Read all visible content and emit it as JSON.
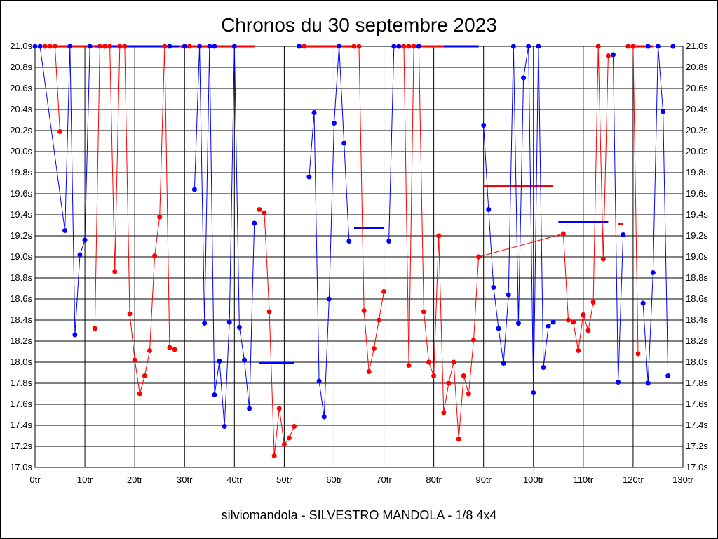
{
  "chart_data": {
    "type": "line",
    "title": "Chronos du 30 septembre 2023",
    "footer": "silviomandola - SILVESTRO MANDOLA - 1/8 4x4",
    "xlabel": "",
    "ylabel": "",
    "xlim": [
      0,
      130
    ],
    "ylim": [
      17.0,
      21.0
    ],
    "grid": true,
    "legend": "none",
    "x_ticks": [
      {
        "value": 0,
        "label": "0tr"
      },
      {
        "value": 10,
        "label": "10tr"
      },
      {
        "value": 20,
        "label": "20tr"
      },
      {
        "value": 30,
        "label": "30tr"
      },
      {
        "value": 40,
        "label": "40tr"
      },
      {
        "value": 50,
        "label": "50tr"
      },
      {
        "value": 60,
        "label": "60tr"
      },
      {
        "value": 70,
        "label": "70tr"
      },
      {
        "value": 80,
        "label": "80tr"
      },
      {
        "value": 90,
        "label": "90tr"
      },
      {
        "value": 100,
        "label": "100tr"
      },
      {
        "value": 110,
        "label": "110tr"
      },
      {
        "value": 120,
        "label": "120tr"
      },
      {
        "value": 130,
        "label": "130tr"
      }
    ],
    "y_ticks": [
      {
        "value": 17.0,
        "label": "17.0s"
      },
      {
        "value": 17.2,
        "label": "17.2s"
      },
      {
        "value": 17.4,
        "label": "17.4s"
      },
      {
        "value": 17.6,
        "label": "17.6s"
      },
      {
        "value": 17.8,
        "label": "17.8s"
      },
      {
        "value": 18.0,
        "label": "18.0s"
      },
      {
        "value": 18.2,
        "label": "18.2s"
      },
      {
        "value": 18.4,
        "label": "18.4s"
      },
      {
        "value": 18.6,
        "label": "18.6s"
      },
      {
        "value": 18.8,
        "label": "18.8s"
      },
      {
        "value": 19.0,
        "label": "19.0s"
      },
      {
        "value": 19.2,
        "label": "19.2s"
      },
      {
        "value": 19.4,
        "label": "19.4s"
      },
      {
        "value": 19.6,
        "label": "19.6s"
      },
      {
        "value": 19.8,
        "label": "19.8s"
      },
      {
        "value": 20.0,
        "label": "20.0s"
      },
      {
        "value": 20.2,
        "label": "20.2s"
      },
      {
        "value": 20.4,
        "label": "20.4s"
      },
      {
        "value": 20.6,
        "label": "20.6s"
      },
      {
        "value": 20.8,
        "label": "20.8s"
      },
      {
        "value": 21.0,
        "label": "21.0s"
      }
    ],
    "series": [
      {
        "color": "#0000ff",
        "points": [
          [
            0,
            21.0
          ],
          [
            1,
            21.0
          ],
          [
            6,
            19.25
          ],
          [
            7,
            21.0
          ],
          [
            8,
            18.26
          ],
          [
            9,
            19.02
          ],
          [
            10,
            19.16
          ],
          [
            11,
            21.0
          ],
          [
            32,
            19.64
          ],
          [
            33,
            21.0
          ],
          [
            34,
            18.37
          ],
          [
            35,
            21.0
          ],
          [
            36,
            17.69
          ],
          [
            37,
            18.01
          ],
          [
            38,
            17.39
          ],
          [
            39,
            18.38
          ],
          [
            40,
            21.0
          ],
          [
            41,
            18.33
          ],
          [
            42,
            18.02
          ],
          [
            43,
            17.56
          ],
          [
            44,
            19.32
          ],
          [
            55,
            19.76
          ],
          [
            56,
            20.37
          ],
          [
            57,
            17.82
          ],
          [
            58,
            17.48
          ],
          [
            59,
            18.6
          ],
          [
            60,
            20.27
          ],
          [
            61,
            21.0
          ],
          [
            62,
            20.08
          ],
          [
            63,
            19.15
          ],
          [
            71,
            19.15
          ],
          [
            72,
            21.0
          ],
          [
            90,
            20.25
          ],
          [
            91,
            19.45
          ],
          [
            92,
            18.71
          ],
          [
            93,
            18.32
          ],
          [
            94,
            17.99
          ],
          [
            95,
            18.64
          ],
          [
            96,
            21.0
          ],
          [
            97,
            18.37
          ],
          [
            98,
            20.7
          ],
          [
            99,
            21.0
          ],
          [
            100,
            17.71
          ],
          [
            101,
            21.0
          ],
          [
            102,
            17.95
          ],
          [
            103,
            18.34
          ],
          [
            104,
            18.38
          ],
          [
            116,
            20.92
          ],
          [
            117,
            17.81
          ],
          [
            118,
            19.21
          ],
          [
            122,
            18.56
          ],
          [
            123,
            17.8
          ],
          [
            124,
            18.85
          ],
          [
            125,
            21.0
          ],
          [
            126,
            20.38
          ],
          [
            127,
            17.87
          ],
          [
            128,
            21.0
          ]
        ],
        "segments": [
          [
            0,
            7
          ],
          [
            8,
            20
          ],
          [
            21,
            29
          ],
          [
            30,
            31
          ],
          [
            32,
            46
          ],
          [
            47,
            49
          ],
          [
            50,
            55
          ]
        ]
      },
      {
        "color": "#ff0000",
        "points": [
          [
            3,
            21.0
          ],
          [
            4,
            21.0
          ],
          [
            5,
            20.19
          ],
          [
            12,
            18.32
          ],
          [
            13,
            21.0
          ],
          [
            14,
            21.0
          ],
          [
            15,
            21.0
          ],
          [
            16,
            18.86
          ],
          [
            17,
            21.0
          ],
          [
            18,
            21.0
          ],
          [
            19,
            18.46
          ],
          [
            20,
            18.02
          ],
          [
            21,
            17.7
          ],
          [
            22,
            17.87
          ],
          [
            23,
            18.11
          ],
          [
            24,
            19.01
          ],
          [
            25,
            19.38
          ],
          [
            26,
            21.0
          ],
          [
            27,
            18.14
          ],
          [
            28,
            18.12
          ],
          [
            45,
            19.45
          ],
          [
            46,
            19.42
          ],
          [
            47,
            18.48
          ],
          [
            48,
            17.11
          ],
          [
            49,
            17.56
          ],
          [
            50,
            17.22
          ],
          [
            51,
            17.28
          ],
          [
            52,
            17.39
          ],
          [
            65,
            21.0
          ],
          [
            66,
            18.49
          ],
          [
            67,
            17.91
          ],
          [
            68,
            18.13
          ],
          [
            69,
            18.4
          ],
          [
            70,
            18.67
          ],
          [
            74,
            21.0
          ],
          [
            75,
            17.97
          ],
          [
            76,
            21.0
          ],
          [
            77,
            21.0
          ],
          [
            78,
            18.48
          ],
          [
            79,
            18.0
          ],
          [
            80,
            17.87
          ],
          [
            81,
            19.2
          ],
          [
            82,
            17.52
          ],
          [
            83,
            17.8
          ],
          [
            84,
            18.0
          ],
          [
            85,
            17.27
          ],
          [
            86,
            17.87
          ],
          [
            87,
            17.7
          ],
          [
            88,
            18.21
          ],
          [
            89,
            19.0
          ],
          [
            106,
            19.22
          ],
          [
            107,
            18.4
          ],
          [
            108,
            18.38
          ],
          [
            109,
            18.11
          ],
          [
            110,
            18.45
          ],
          [
            111,
            18.3
          ],
          [
            112,
            18.57
          ],
          [
            113,
            21.0
          ],
          [
            114,
            18.98
          ],
          [
            115,
            20.91
          ],
          [
            120,
            21.0
          ],
          [
            121,
            18.08
          ]
        ],
        "segments": [
          [
            0,
            2
          ],
          [
            3,
            19
          ],
          [
            20,
            27
          ],
          [
            28,
            33
          ],
          [
            34,
            51
          ],
          [
            52,
            59
          ],
          [
            60,
            61
          ]
        ]
      }
    ],
    "flat_segments": [
      {
        "color": "#0000ff",
        "x": [
          8,
          29
        ],
        "y": 21.0
      },
      {
        "color": "#0000ff",
        "x": [
          45,
          52
        ],
        "y": 17.99
      },
      {
        "color": "#0000ff",
        "x": [
          64,
          70
        ],
        "y": 19.27
      },
      {
        "color": "#0000ff",
        "x": [
          77,
          89
        ],
        "y": 21.0
      },
      {
        "color": "#0000ff",
        "x": [
          105,
          115
        ],
        "y": 19.33
      },
      {
        "color": "#ff0000",
        "x": [
          2,
          12
        ],
        "y": 21.0
      },
      {
        "color": "#ff0000",
        "x": [
          29,
          44
        ],
        "y": 21.0
      },
      {
        "color": "#ff0000",
        "x": [
          54,
          64
        ],
        "y": 21.0
      },
      {
        "color": "#ff0000",
        "x": [
          72,
          82
        ],
        "y": 21.0
      },
      {
        "color": "#ff0000",
        "x": [
          90,
          104
        ],
        "y": 19.67
      },
      {
        "color": "#ff0000",
        "x": [
          117,
          118
        ],
        "y": 19.31
      },
      {
        "color": "#ff0000",
        "x": [
          119,
          124
        ],
        "y": 21.0
      }
    ],
    "flat_markers": [
      {
        "color": "#0000ff",
        "points": [
          [
            27,
            21.0
          ],
          [
            30,
            21.0
          ],
          [
            36,
            21.0
          ],
          [
            53,
            21.0
          ],
          [
            73,
            21.0
          ],
          [
            77,
            21.0
          ],
          [
            123,
            21.0
          ]
        ]
      },
      {
        "color": "#ff0000",
        "points": [
          [
            2,
            21.0
          ],
          [
            15,
            21.0
          ],
          [
            31,
            21.0
          ],
          [
            54,
            21.0
          ],
          [
            64,
            21.0
          ],
          [
            75,
            21.0
          ],
          [
            119,
            21.0
          ],
          [
            120,
            21.0
          ]
        ]
      }
    ]
  }
}
